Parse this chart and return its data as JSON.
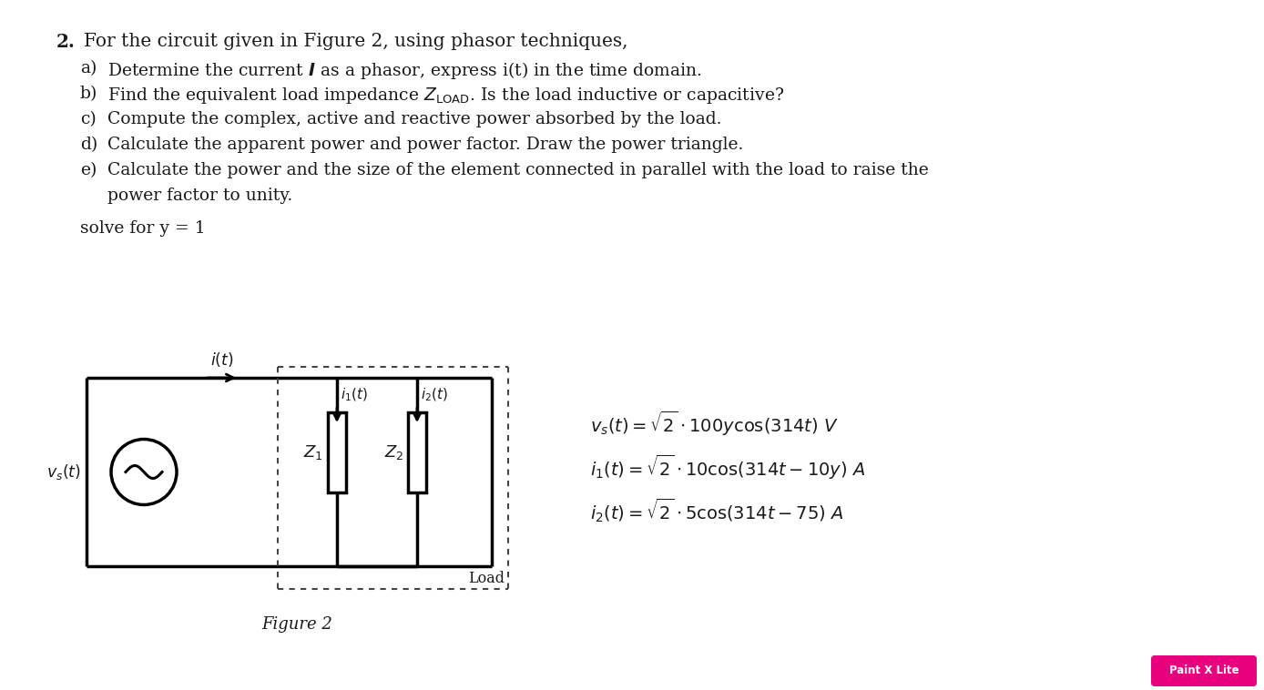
{
  "bg_color": "#ffffff",
  "title_number": "2.",
  "title_text": "For the circuit given in Figure 2, using phasor techniques,",
  "items": [
    [
      "a)",
      "Determine the current $\\boldsymbol{I}$ as a phasor, express i(t) in the time domain."
    ],
    [
      "b)",
      "Find the equivalent load impedance $Z_{\\mathrm{LOAD}}$. Is the load inductive or capacitive?"
    ],
    [
      "c)",
      "Compute the complex, active and reactive power absorbed by the load."
    ],
    [
      "d)",
      "Calculate the apparent power and power factor. Draw the power triangle."
    ],
    [
      "e)",
      "Calculate the power and the size of the element connected in parallel with the load to raise the",
      "power factor to unity."
    ]
  ],
  "solve_text": "solve for y = 1",
  "eq1": "$v_s(t) = \\sqrt{2}\\cdot 100y\\cos(314t)\\ V$",
  "eq2": "$i_1(t) = \\sqrt{2}\\cdot 10\\cos(314t - 10y)\\ A$",
  "eq3": "$i_2(t) = \\sqrt{2}\\cdot 5\\cos(314t - 75)\\ A$",
  "figure_label": "Figure 2",
  "load_label": "Load",
  "text_color": "#1a1a1a",
  "circuit_color": "#000000",
  "watermark_bg": "#e8007f",
  "watermark_text": "Paint X Lite",
  "watermark_color": "#ffffff",
  "fs_title": 14.5,
  "fs_body": 13.5,
  "fs_circuit": 12.5,
  "fs_eq": 14.0
}
